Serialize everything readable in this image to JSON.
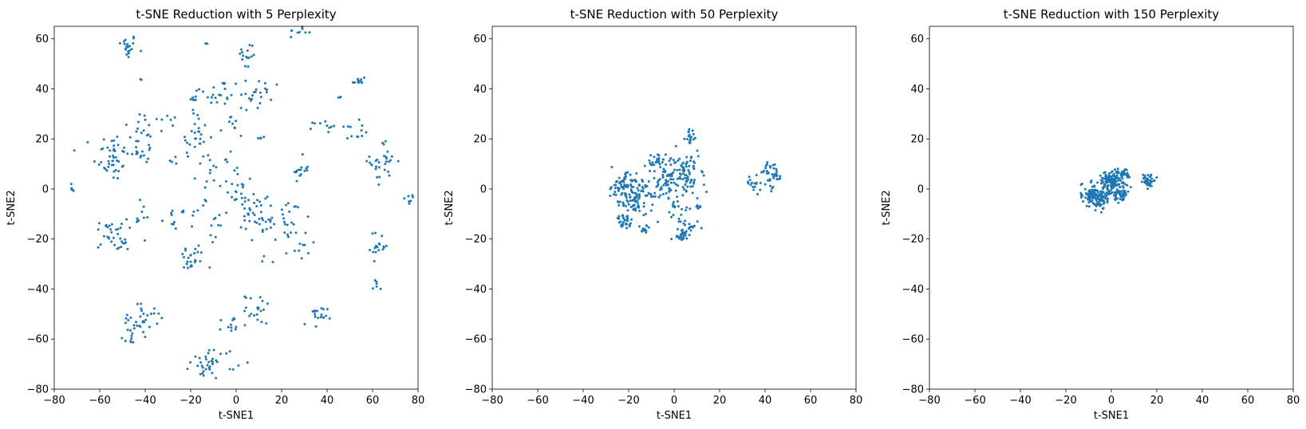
{
  "chart_data": [
    {
      "type": "scatter",
      "title": "t-SNE Reduction with 5 Perplexity",
      "xlabel": "t-SNE1",
      "ylabel": "t-SNE2",
      "xlim": [
        -80,
        80
      ],
      "ylim": [
        -80,
        65
      ],
      "xticks": [
        "−80",
        "−60",
        "−40",
        "−20",
        "0",
        "20",
        "40",
        "60",
        "80"
      ],
      "yticks": [
        "−80",
        "−60",
        "−40",
        "−20",
        "0",
        "20",
        "40",
        "60"
      ],
      "color": "#1f77b4",
      "clusters": [
        {
          "cx": -48,
          "cy": 57,
          "sx": 2.2,
          "sy": 2.5,
          "n": 20
        },
        {
          "cx": -42,
          "cy": 43.5,
          "sx": 0.4,
          "sy": 0.4,
          "n": 2
        },
        {
          "cx": -40,
          "cy": 24,
          "sx": 4.5,
          "sy": 4,
          "n": 18
        },
        {
          "cx": -30,
          "cy": 25,
          "sx": 2,
          "sy": 2.5,
          "n": 6
        },
        {
          "cx": -40,
          "cy": 14,
          "sx": 3,
          "sy": 2,
          "n": 14
        },
        {
          "cx": -55,
          "cy": 13,
          "sx": 4,
          "sy": 5,
          "n": 45
        },
        {
          "cx": -28,
          "cy": 11,
          "sx": 1.5,
          "sy": 2,
          "n": 4
        },
        {
          "cx": -18,
          "cy": 20,
          "sx": 3,
          "sy": 4,
          "n": 22
        },
        {
          "cx": -18,
          "cy": 35,
          "sx": 2,
          "sy": 4,
          "n": 12
        },
        {
          "cx": -13,
          "cy": 58,
          "sx": 0.5,
          "sy": 0.5,
          "n": 2
        },
        {
          "cx": -7,
          "cy": 38,
          "sx": 3.5,
          "sy": 3,
          "n": 18
        },
        {
          "cx": 5,
          "cy": 53,
          "sx": 2,
          "sy": 3,
          "n": 15
        },
        {
          "cx": 6,
          "cy": 38,
          "sx": 2.5,
          "sy": 4,
          "n": 15
        },
        {
          "cx": 13,
          "cy": 38,
          "sx": 3,
          "sy": 3,
          "n": 10
        },
        {
          "cx": 12,
          "cy": 20.5,
          "sx": 1.5,
          "sy": 0.4,
          "n": 4
        },
        {
          "cx": -3,
          "cy": 25,
          "sx": 2,
          "sy": 2.5,
          "n": 8
        },
        {
          "cx": 28,
          "cy": 63,
          "sx": 2.5,
          "sy": 1,
          "n": 10
        },
        {
          "cx": 28,
          "cy": 8,
          "sx": 2,
          "sy": 2.5,
          "n": 14
        },
        {
          "cx": 39,
          "cy": 25,
          "sx": 2.5,
          "sy": 1.2,
          "n": 10
        },
        {
          "cx": 50,
          "cy": 23,
          "sx": 3,
          "sy": 2,
          "n": 12
        },
        {
          "cx": 54,
          "cy": 43,
          "sx": 1.5,
          "sy": 1.5,
          "n": 12
        },
        {
          "cx": 46,
          "cy": 36.5,
          "sx": 0.6,
          "sy": 0.6,
          "n": 3
        },
        {
          "cx": 65,
          "cy": 11,
          "sx": 3,
          "sy": 4,
          "n": 30
        },
        {
          "cx": 76,
          "cy": -4,
          "sx": 1.5,
          "sy": 1.2,
          "n": 7
        },
        {
          "cx": -72,
          "cy": 0.5,
          "sx": 0.6,
          "sy": 1,
          "n": 5
        },
        {
          "cx": 63,
          "cy": -23,
          "sx": 2,
          "sy": 3,
          "n": 18
        },
        {
          "cx": 62,
          "cy": -38,
          "sx": 1,
          "sy": 1.5,
          "n": 6
        },
        {
          "cx": -55,
          "cy": -18,
          "sx": 3.5,
          "sy": 3,
          "n": 30
        },
        {
          "cx": -50,
          "cy": -23,
          "sx": 1.2,
          "sy": 1.2,
          "n": 5
        },
        {
          "cx": -42,
          "cy": -12,
          "sx": 2,
          "sy": 3,
          "n": 10
        },
        {
          "cx": -29,
          "cy": -12,
          "sx": 2,
          "sy": 2.5,
          "n": 8
        },
        {
          "cx": -20,
          "cy": -28,
          "sx": 3,
          "sy": 3,
          "n": 25
        },
        {
          "cx": -17,
          "cy": -8,
          "sx": 3,
          "sy": 3,
          "n": 10
        },
        {
          "cx": -8,
          "cy": -15,
          "sx": 2.5,
          "sy": 2.5,
          "n": 10
        },
        {
          "cx": -10,
          "cy": 7,
          "sx": 3.5,
          "sy": 4,
          "n": 18
        },
        {
          "cx": 2,
          "cy": 0,
          "sx": 4,
          "sy": 4,
          "n": 20
        },
        {
          "cx": 8,
          "cy": -12,
          "sx": 4,
          "sy": 5,
          "n": 30
        },
        {
          "cx": 22,
          "cy": -12,
          "sx": 5,
          "sy": 5,
          "n": 35
        },
        {
          "cx": 28,
          "cy": -24,
          "sx": 2,
          "sy": 2,
          "n": 8
        },
        {
          "cx": 13,
          "cy": -30,
          "sx": 1.5,
          "sy": 1.5,
          "n": 3
        },
        {
          "cx": -44,
          "cy": -53,
          "sx": 3,
          "sy": 3.5,
          "n": 30
        },
        {
          "cx": -35,
          "cy": -50,
          "sx": 1.5,
          "sy": 2,
          "n": 6
        },
        {
          "cx": -47,
          "cy": -61,
          "sx": 1.2,
          "sy": 0.8,
          "n": 5
        },
        {
          "cx": -10,
          "cy": -69,
          "sx": 5,
          "sy": 3,
          "n": 35
        },
        {
          "cx": -14,
          "cy": -73,
          "sx": 1.5,
          "sy": 1,
          "n": 4
        },
        {
          "cx": -2,
          "cy": -54,
          "sx": 2,
          "sy": 2.5,
          "n": 12
        },
        {
          "cx": 10,
          "cy": -48,
          "sx": 3,
          "sy": 3,
          "n": 20
        },
        {
          "cx": 35,
          "cy": -52,
          "sx": 2.5,
          "sy": 2.5,
          "n": 18
        }
      ]
    },
    {
      "type": "scatter",
      "title": "t-SNE Reduction with 50 Perplexity",
      "xlabel": "t-SNE1",
      "ylabel": "t-SNE2",
      "xlim": [
        -80,
        80
      ],
      "ylim": [
        -80,
        65
      ],
      "xticks": [
        "−80",
        "−60",
        "−40",
        "−20",
        "0",
        "20",
        "40",
        "60",
        "80"
      ],
      "yticks": [
        "−80",
        "−60",
        "−40",
        "−20",
        "0",
        "20",
        "40",
        "60"
      ],
      "color": "#1f77b4",
      "clusters": [
        {
          "cx": -22,
          "cy": 2,
          "sx": 3.5,
          "sy": 3,
          "n": 70
        },
        {
          "cx": -20,
          "cy": -6,
          "sx": 3,
          "sy": 3,
          "n": 40
        },
        {
          "cx": -13,
          "cy": -4,
          "sx": 3.5,
          "sy": 4,
          "n": 35
        },
        {
          "cx": -22,
          "cy": -13,
          "sx": 2,
          "sy": 1.5,
          "n": 30
        },
        {
          "cx": -13,
          "cy": -16,
          "sx": 1,
          "sy": 1,
          "n": 12
        },
        {
          "cx": -7,
          "cy": 11,
          "sx": 2.5,
          "sy": 1.5,
          "n": 25
        },
        {
          "cx": -4,
          "cy": 3,
          "sx": 3,
          "sy": 4,
          "n": 55
        },
        {
          "cx": 5,
          "cy": 6,
          "sx": 3.5,
          "sy": 4,
          "n": 85
        },
        {
          "cx": 7,
          "cy": 21,
          "sx": 1.2,
          "sy": 1.5,
          "n": 18
        },
        {
          "cx": 2,
          "cy": -8,
          "sx": 2.5,
          "sy": 3,
          "n": 20
        },
        {
          "cx": 7,
          "cy": -15,
          "sx": 2.5,
          "sy": 1.5,
          "n": 20
        },
        {
          "cx": 3,
          "cy": -19,
          "sx": 2,
          "sy": 1.2,
          "n": 20
        },
        {
          "cx": 11,
          "cy": -7,
          "sx": 0.8,
          "sy": 0.8,
          "n": 8
        },
        {
          "cx": 35,
          "cy": 2,
          "sx": 1.5,
          "sy": 2.5,
          "n": 15
        },
        {
          "cx": 43,
          "cy": 6,
          "sx": 2.5,
          "sy": 2.5,
          "n": 40
        }
      ]
    },
    {
      "type": "scatter",
      "title": "t-SNE Reduction with 150 Perplexity",
      "xlabel": "t-SNE1",
      "ylabel": "t-SNE2",
      "xlim": [
        -80,
        80
      ],
      "ylim": [
        -80,
        65
      ],
      "xticks": [
        "−80",
        "−60",
        "−40",
        "−20",
        "0",
        "20",
        "40",
        "60",
        "80"
      ],
      "yticks": [
        "−80",
        "−60",
        "−40",
        "−20",
        "0",
        "20",
        "40",
        "60"
      ],
      "color": "#1f77b4",
      "clusters": [
        {
          "cx": -7,
          "cy": -3,
          "sx": 3,
          "sy": 2.2,
          "n": 140
        },
        {
          "cx": 0,
          "cy": 3,
          "sx": 2.5,
          "sy": 2.5,
          "n": 120
        },
        {
          "cx": 4,
          "cy": -2,
          "sx": 1.8,
          "sy": 2,
          "n": 50
        },
        {
          "cx": 6,
          "cy": 6,
          "sx": 1.5,
          "sy": 1,
          "n": 25
        },
        {
          "cx": 16,
          "cy": 3,
          "sx": 1.2,
          "sy": 1.5,
          "n": 40
        }
      ]
    }
  ]
}
